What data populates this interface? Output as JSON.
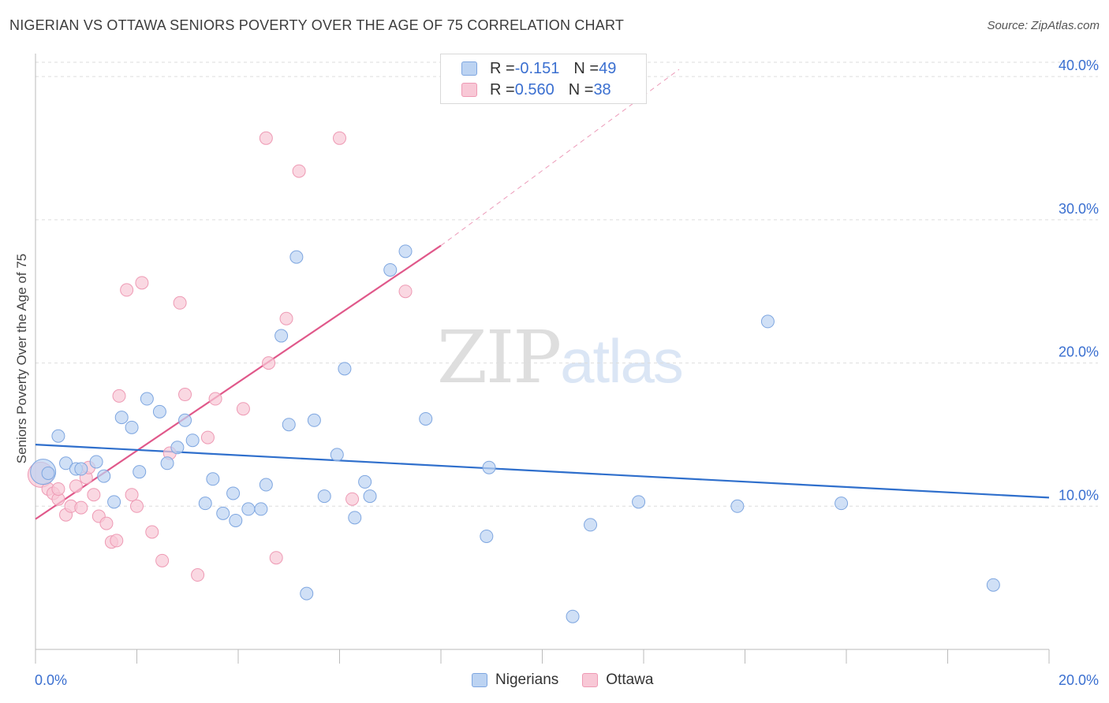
{
  "header": {
    "title": "NIGERIAN VS OTTAWA SENIORS POVERTY OVER THE AGE OF 75 CORRELATION CHART",
    "source": "Source: ZipAtlas.com"
  },
  "watermark": {
    "zip": "ZIP",
    "atlas": "atlas"
  },
  "legend": {
    "rows": [
      {
        "r_label": "R = ",
        "r_value": "-0.151",
        "n_label": "N = ",
        "n_value": "49"
      },
      {
        "r_label": "R = ",
        "r_value": "0.560",
        "n_label": "N = ",
        "n_value": "38"
      }
    ]
  },
  "colors": {
    "nigerians_fill": "#bcd3f2",
    "nigerians_stroke": "#7ea6e0",
    "nigerians_line": "#2f6fcc",
    "ottawa_fill": "#f8c8d6",
    "ottawa_stroke": "#ee9ab4",
    "ottawa_line": "#e0588a",
    "tick_text": "#3a6fd0",
    "grid": "#dddddd"
  },
  "chart_data": {
    "type": "scatter",
    "title": "NIGERIAN VS OTTAWA SENIORS POVERTY OVER THE AGE OF 75 CORRELATION CHART",
    "xlabel": "",
    "ylabel": "Seniors Poverty Over the Age of 75",
    "xlim": [
      0,
      20
    ],
    "ylim": [
      0,
      41
    ],
    "x_tick_labels": [
      "0.0%",
      "20.0%"
    ],
    "y_tick_values": [
      10,
      20,
      30,
      40
    ],
    "y_tick_labels": [
      "10.0%",
      "20.0%",
      "30.0%",
      "40.0%"
    ],
    "grid": true,
    "legend_position": "top-center",
    "series": [
      {
        "name": "Nigerians",
        "r": -0.151,
        "n": 49,
        "trend": {
          "x": [
            0,
            20
          ],
          "y": [
            14.3,
            10.6
          ]
        },
        "points": [
          {
            "x": 0.15,
            "y": 12.4,
            "big": true
          },
          {
            "x": 0.45,
            "y": 14.9
          },
          {
            "x": 0.6,
            "y": 13.0
          },
          {
            "x": 0.8,
            "y": 12.6
          },
          {
            "x": 0.9,
            "y": 12.6
          },
          {
            "x": 1.2,
            "y": 13.1
          },
          {
            "x": 1.35,
            "y": 12.1
          },
          {
            "x": 1.55,
            "y": 10.3
          },
          {
            "x": 1.7,
            "y": 16.2
          },
          {
            "x": 1.9,
            "y": 15.5
          },
          {
            "x": 2.05,
            "y": 12.4
          },
          {
            "x": 2.2,
            "y": 17.5
          },
          {
            "x": 2.45,
            "y": 16.6
          },
          {
            "x": 2.6,
            "y": 13.0
          },
          {
            "x": 2.8,
            "y": 14.1
          },
          {
            "x": 2.95,
            "y": 16.0
          },
          {
            "x": 3.1,
            "y": 14.6
          },
          {
            "x": 3.35,
            "y": 10.2
          },
          {
            "x": 3.5,
            "y": 11.9
          },
          {
            "x": 3.7,
            "y": 9.5
          },
          {
            "x": 3.9,
            "y": 10.9
          },
          {
            "x": 3.95,
            "y": 9.0
          },
          {
            "x": 4.2,
            "y": 9.8
          },
          {
            "x": 4.45,
            "y": 9.8
          },
          {
            "x": 4.55,
            "y": 11.5
          },
          {
            "x": 4.85,
            "y": 21.9
          },
          {
            "x": 5.0,
            "y": 15.7
          },
          {
            "x": 5.15,
            "y": 27.4
          },
          {
            "x": 5.35,
            "y": 3.9
          },
          {
            "x": 5.5,
            "y": 16.0
          },
          {
            "x": 5.7,
            "y": 10.7
          },
          {
            "x": 5.95,
            "y": 13.6
          },
          {
            "x": 6.1,
            "y": 19.6
          },
          {
            "x": 6.3,
            "y": 9.2
          },
          {
            "x": 6.5,
            "y": 11.7
          },
          {
            "x": 6.6,
            "y": 10.7
          },
          {
            "x": 7.0,
            "y": 26.5
          },
          {
            "x": 7.3,
            "y": 27.8
          },
          {
            "x": 7.7,
            "y": 16.1
          },
          {
            "x": 8.9,
            "y": 7.9
          },
          {
            "x": 8.95,
            "y": 12.7
          },
          {
            "x": 10.6,
            "y": 2.3
          },
          {
            "x": 10.95,
            "y": 8.7
          },
          {
            "x": 11.9,
            "y": 10.3
          },
          {
            "x": 13.85,
            "y": 10.0
          },
          {
            "x": 14.45,
            "y": 22.9
          },
          {
            "x": 15.9,
            "y": 10.2
          },
          {
            "x": 18.9,
            "y": 4.5
          },
          {
            "x": 0.25,
            "y": 12.3
          }
        ]
      },
      {
        "name": "Ottawa",
        "r": 0.56,
        "n": 38,
        "trend": {
          "x": [
            0,
            8.0
          ],
          "y": [
            9.1,
            28.2
          ]
        },
        "trend_dashed": {
          "x": [
            8.0,
            12.7
          ],
          "y": [
            28.2,
            40.5
          ]
        },
        "points": [
          {
            "x": 0.1,
            "y": 12.2,
            "big": true
          },
          {
            "x": 0.25,
            "y": 11.2
          },
          {
            "x": 0.35,
            "y": 10.9
          },
          {
            "x": 0.45,
            "y": 10.5
          },
          {
            "x": 0.45,
            "y": 11.2
          },
          {
            "x": 0.6,
            "y": 9.4
          },
          {
            "x": 0.7,
            "y": 10.0
          },
          {
            "x": 0.8,
            "y": 11.4
          },
          {
            "x": 0.9,
            "y": 9.9
          },
          {
            "x": 1.0,
            "y": 12.0
          },
          {
            "x": 1.05,
            "y": 12.7
          },
          {
            "x": 1.15,
            "y": 10.8
          },
          {
            "x": 1.25,
            "y": 9.3
          },
          {
            "x": 1.4,
            "y": 8.8
          },
          {
            "x": 1.5,
            "y": 7.5
          },
          {
            "x": 1.6,
            "y": 7.6
          },
          {
            "x": 1.65,
            "y": 17.7
          },
          {
            "x": 1.8,
            "y": 25.1
          },
          {
            "x": 1.9,
            "y": 10.8
          },
          {
            "x": 2.0,
            "y": 10.0
          },
          {
            "x": 2.1,
            "y": 25.6
          },
          {
            "x": 2.3,
            "y": 8.2
          },
          {
            "x": 2.5,
            "y": 6.2
          },
          {
            "x": 2.65,
            "y": 13.7
          },
          {
            "x": 2.85,
            "y": 24.2
          },
          {
            "x": 2.95,
            "y": 17.8
          },
          {
            "x": 3.2,
            "y": 5.2
          },
          {
            "x": 3.4,
            "y": 14.8
          },
          {
            "x": 3.55,
            "y": 17.5
          },
          {
            "x": 4.1,
            "y": 16.8
          },
          {
            "x": 4.55,
            "y": 35.7
          },
          {
            "x": 4.6,
            "y": 20.0
          },
          {
            "x": 4.75,
            "y": 6.4
          },
          {
            "x": 4.95,
            "y": 23.1
          },
          {
            "x": 5.2,
            "y": 33.4
          },
          {
            "x": 6.0,
            "y": 35.7
          },
          {
            "x": 6.25,
            "y": 10.5
          },
          {
            "x": 7.3,
            "y": 25.0
          }
        ]
      }
    ]
  },
  "bottom_legend": {
    "items": [
      {
        "label": "Nigerians"
      },
      {
        "label": "Ottawa"
      }
    ]
  }
}
